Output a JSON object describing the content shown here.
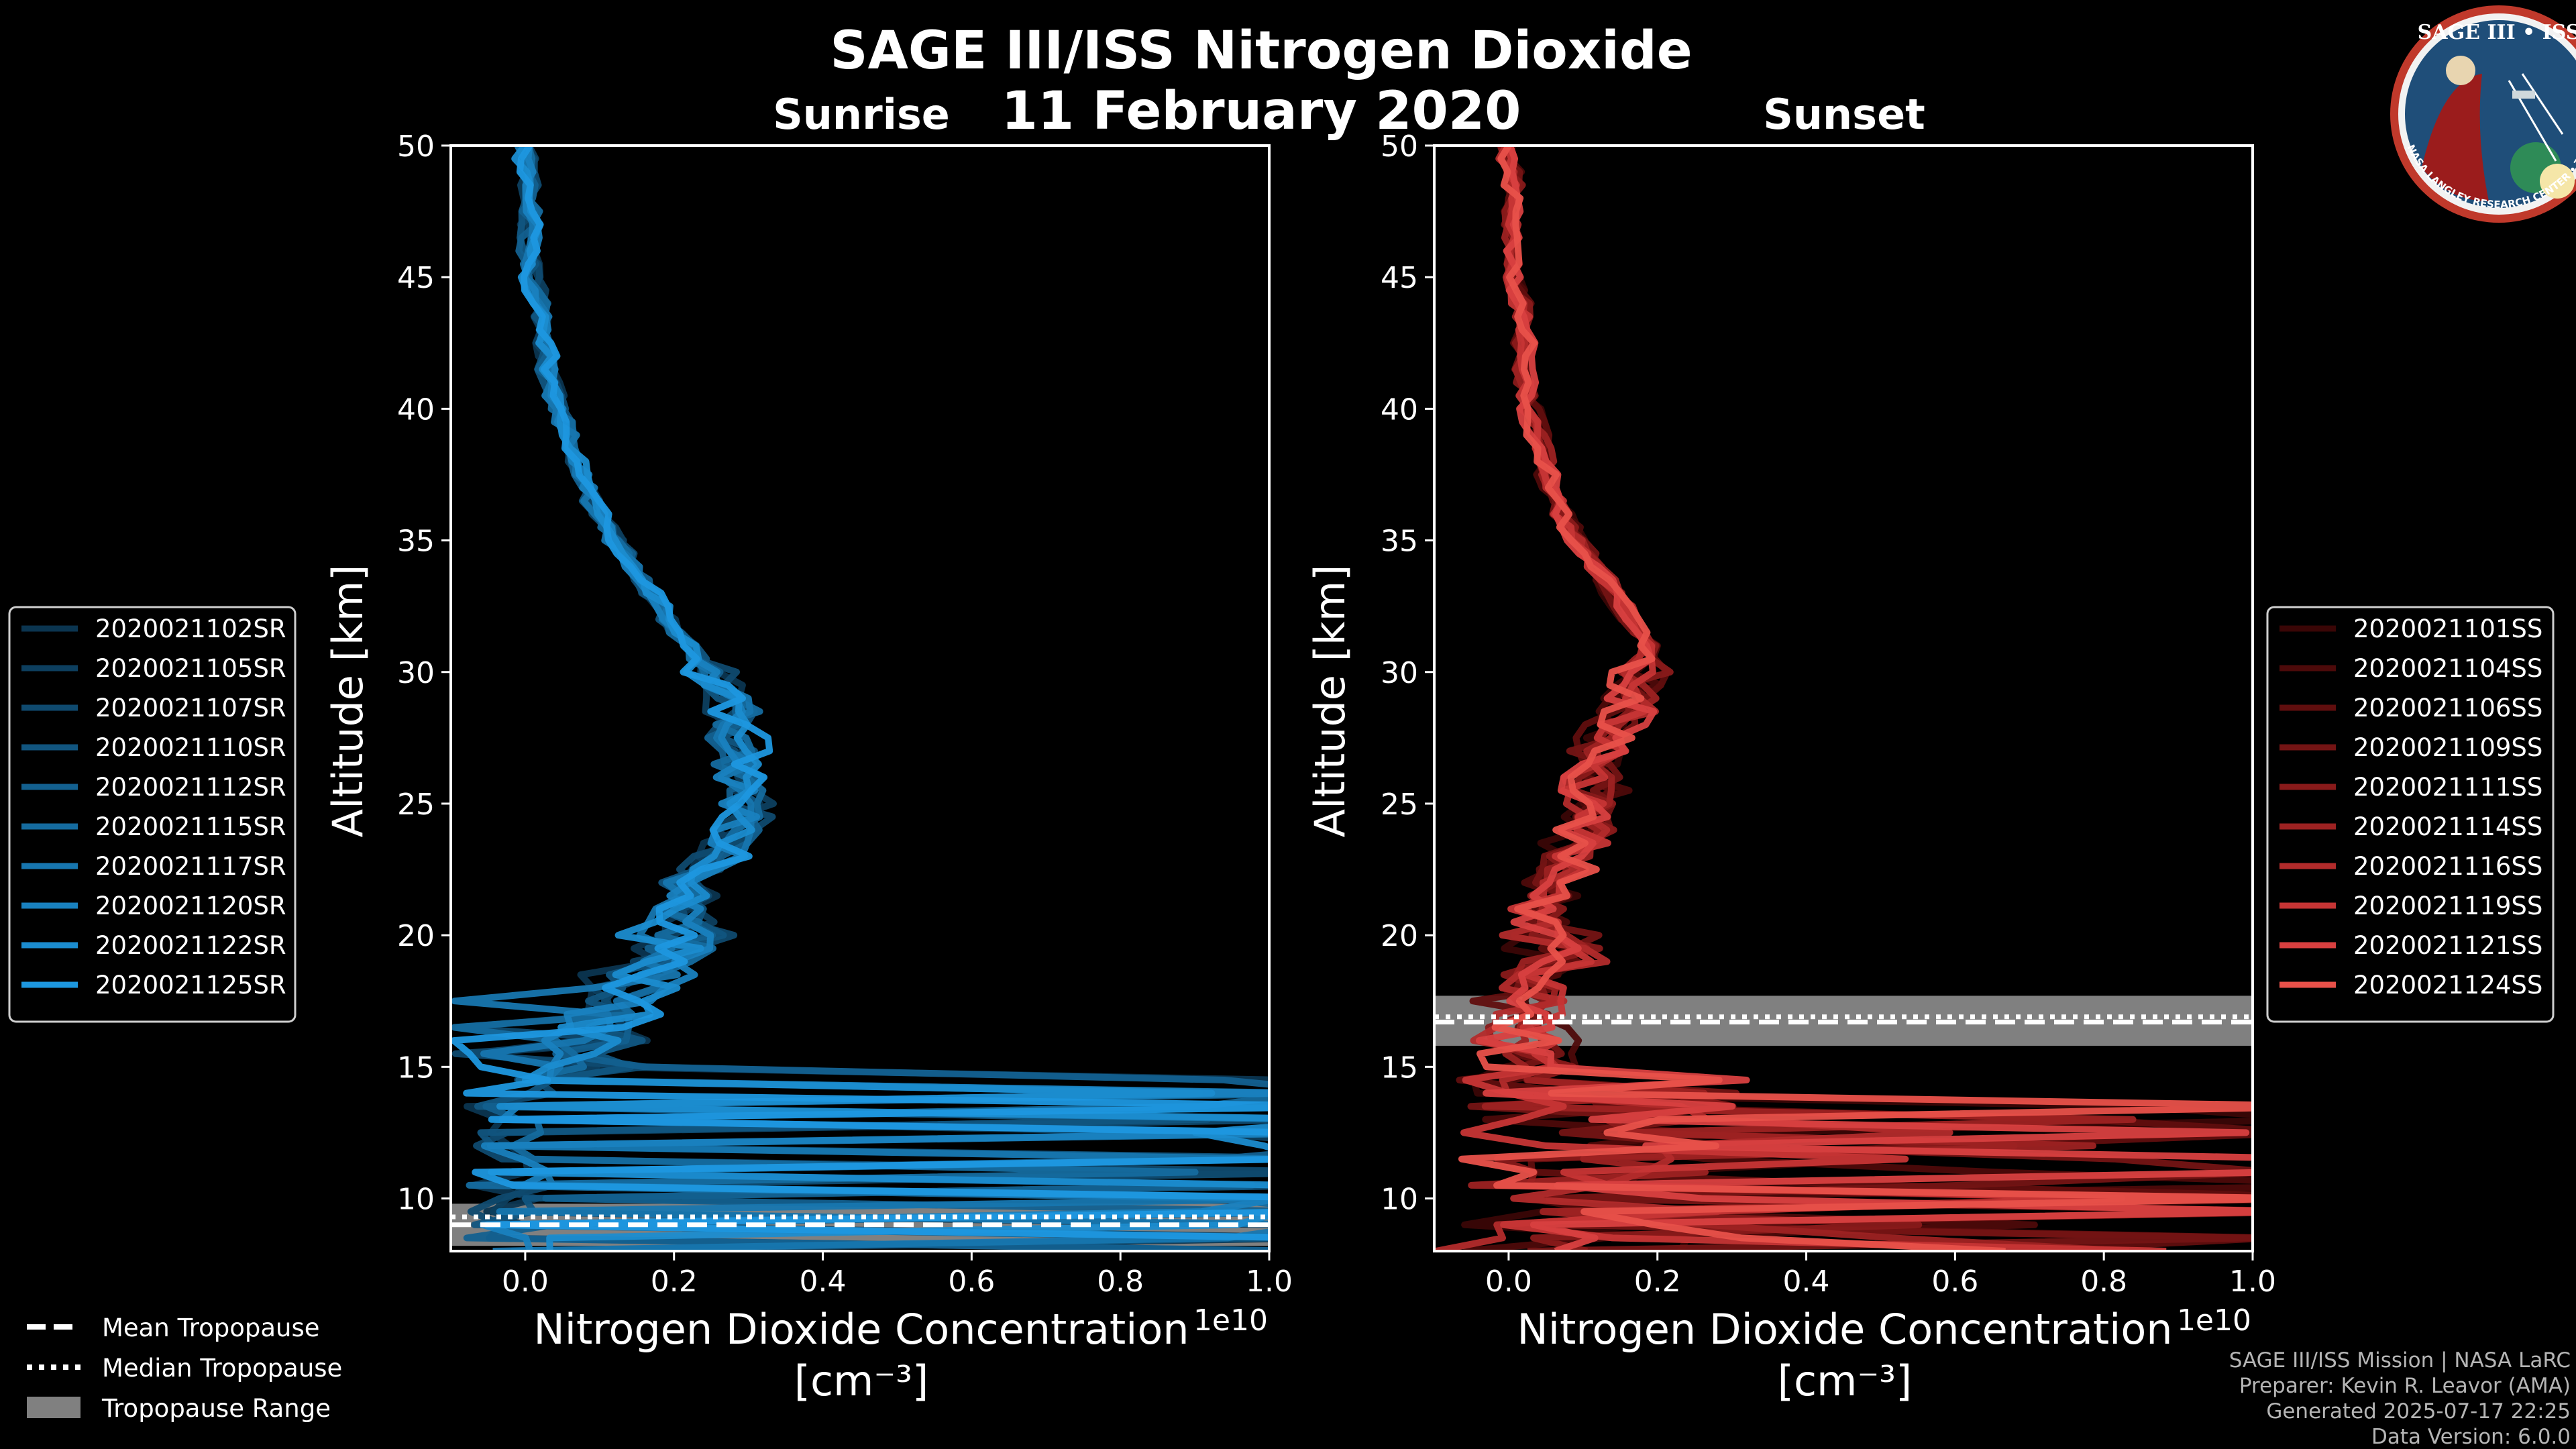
{
  "header": {
    "title": "SAGE III/ISS Nitrogen Dioxide",
    "date": "11 February 2020"
  },
  "logo": {
    "text": "SAGE III • ISS",
    "ring_text": "BALL • NASA LANGLEY RESEARCH CENTER • TAS-I • ESA",
    "colors": {
      "ring": "#c0392b",
      "field": "#1f4e79"
    }
  },
  "colors": {
    "sunrise_series": [
      "#0b3550",
      "#0d3f5f",
      "#0f4a6f",
      "#11557f",
      "#13608f",
      "#156b9f",
      "#1776af",
      "#1981bf",
      "#1b8ccf",
      "#1d97df"
    ],
    "sunset_series": [
      "#3a0606",
      "#4d0a0a",
      "#600e0e",
      "#741414",
      "#891a1a",
      "#9d2222",
      "#b22b2b",
      "#c63535",
      "#d84040",
      "#e8514a"
    ],
    "tropopause_band": "#808080"
  },
  "chart_data": [
    {
      "type": "line",
      "title": "Sunrise",
      "xlabel": "Nitrogen Dioxide Concentration",
      "xlabel_units": "[cm⁻³]",
      "ylabel": "Altitude [km]",
      "xlim": [
        -0.1,
        1.0
      ],
      "ylim": [
        8,
        50
      ],
      "x_offset_label": "1e10",
      "xticks": [
        0.0,
        0.2,
        0.4,
        0.6,
        0.8,
        1.0
      ],
      "xtick_labels": [
        "0.0",
        "0.2",
        "0.4",
        "0.6",
        "0.8",
        "1.0"
      ],
      "yticks": [
        10,
        15,
        20,
        25,
        30,
        35,
        40,
        45,
        50
      ],
      "ytick_labels": [
        "10",
        "15",
        "20",
        "25",
        "30",
        "35",
        "40",
        "45",
        "50"
      ],
      "legend_position": "outside-left",
      "tropopause": {
        "mean": 9.0,
        "median": 9.3,
        "range": [
          8.2,
          9.8
        ]
      },
      "profile_shape": {
        "altitude": [
          50,
          47.5,
          45,
          42.5,
          40,
          37.5,
          35,
          32.5,
          30,
          28,
          26,
          24,
          22,
          20,
          19,
          18,
          17,
          16,
          15
        ],
        "concentration": [
          0.0,
          0.005,
          0.01,
          0.025,
          0.045,
          0.075,
          0.12,
          0.18,
          0.25,
          0.28,
          0.3,
          0.28,
          0.23,
          0.2,
          0.17,
          0.14,
          0.12,
          0.1,
          0.08
        ]
      },
      "series": [
        {
          "name": "2020021102SR"
        },
        {
          "name": "2020021105SR"
        },
        {
          "name": "2020021107SR"
        },
        {
          "name": "2020021110SR"
        },
        {
          "name": "2020021112SR"
        },
        {
          "name": "2020021115SR"
        },
        {
          "name": "2020021117SR"
        },
        {
          "name": "2020021120SR"
        },
        {
          "name": "2020021122SR"
        },
        {
          "name": "2020021125SR"
        }
      ]
    },
    {
      "type": "line",
      "title": "Sunset",
      "xlabel": "Nitrogen Dioxide Concentration",
      "xlabel_units": "[cm⁻³]",
      "ylabel": "Altitude [km]",
      "xlim": [
        -0.1,
        1.0
      ],
      "ylim": [
        8,
        50
      ],
      "x_offset_label": "1e10",
      "xticks": [
        0.0,
        0.2,
        0.4,
        0.6,
        0.8,
        1.0
      ],
      "xtick_labels": [
        "0.0",
        "0.2",
        "0.4",
        "0.6",
        "0.8",
        "1.0"
      ],
      "yticks": [
        10,
        15,
        20,
        25,
        30,
        35,
        40,
        45,
        50
      ],
      "ytick_labels": [
        "10",
        "15",
        "20",
        "25",
        "30",
        "35",
        "40",
        "45",
        "50"
      ],
      "legend_position": "outside-right",
      "tropopause": {
        "mean": 16.7,
        "median": 16.9,
        "range": [
          15.8,
          17.7
        ]
      },
      "profile_shape": {
        "altitude": [
          50,
          47.5,
          45,
          42.5,
          40,
          37.5,
          35,
          33,
          31,
          30,
          29,
          27,
          25,
          23,
          21,
          20,
          19,
          18,
          17,
          16,
          15
        ],
        "concentration": [
          0.0,
          0.005,
          0.01,
          0.02,
          0.03,
          0.05,
          0.09,
          0.14,
          0.19,
          0.18,
          0.16,
          0.13,
          0.11,
          0.08,
          0.05,
          0.04,
          0.05,
          0.03,
          0.04,
          0.03,
          0.04
        ]
      },
      "series": [
        {
          "name": "2020021101SS"
        },
        {
          "name": "2020021104SS"
        },
        {
          "name": "2020021106SS"
        },
        {
          "name": "2020021109SS"
        },
        {
          "name": "2020021111SS"
        },
        {
          "name": "2020021114SS"
        },
        {
          "name": "2020021116SS"
        },
        {
          "name": "2020021119SS"
        },
        {
          "name": "2020021121SS"
        },
        {
          "name": "2020021124SS"
        }
      ]
    }
  ],
  "tropopause_legend": {
    "mean": "Mean Tropopause",
    "median": "Median Tropopause",
    "range": "Tropopause Range"
  },
  "credits": {
    "line1": "SAGE III/ISS Mission | NASA LaRC",
    "line2": "Preparer: Kevin R. Leavor (AMA)",
    "line3": "Generated 2025-07-17 22:25",
    "line4": "Data Version: 6.0.0"
  }
}
